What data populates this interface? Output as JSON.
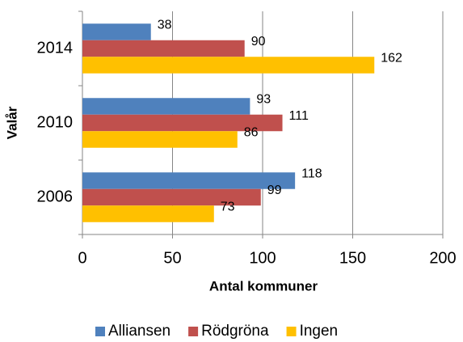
{
  "chart_data": {
    "type": "barh",
    "categories": [
      "2014",
      "2010",
      "2006"
    ],
    "series": [
      {
        "name": "Alliansen",
        "color": "#4f81bd",
        "values": [
          38,
          93,
          118
        ]
      },
      {
        "name": "Rödgröna",
        "color": "#c0504d",
        "values": [
          90,
          111,
          99
        ]
      },
      {
        "name": "Ingen",
        "color": "#ffc000",
        "values": [
          162,
          86,
          73
        ]
      }
    ],
    "xlim": [
      0,
      200
    ],
    "xticks": [
      0,
      50,
      100,
      150,
      200
    ],
    "xlabel": "Antal kommuner",
    "ylabel": "Valår",
    "grid": true,
    "legend": "bottom"
  }
}
